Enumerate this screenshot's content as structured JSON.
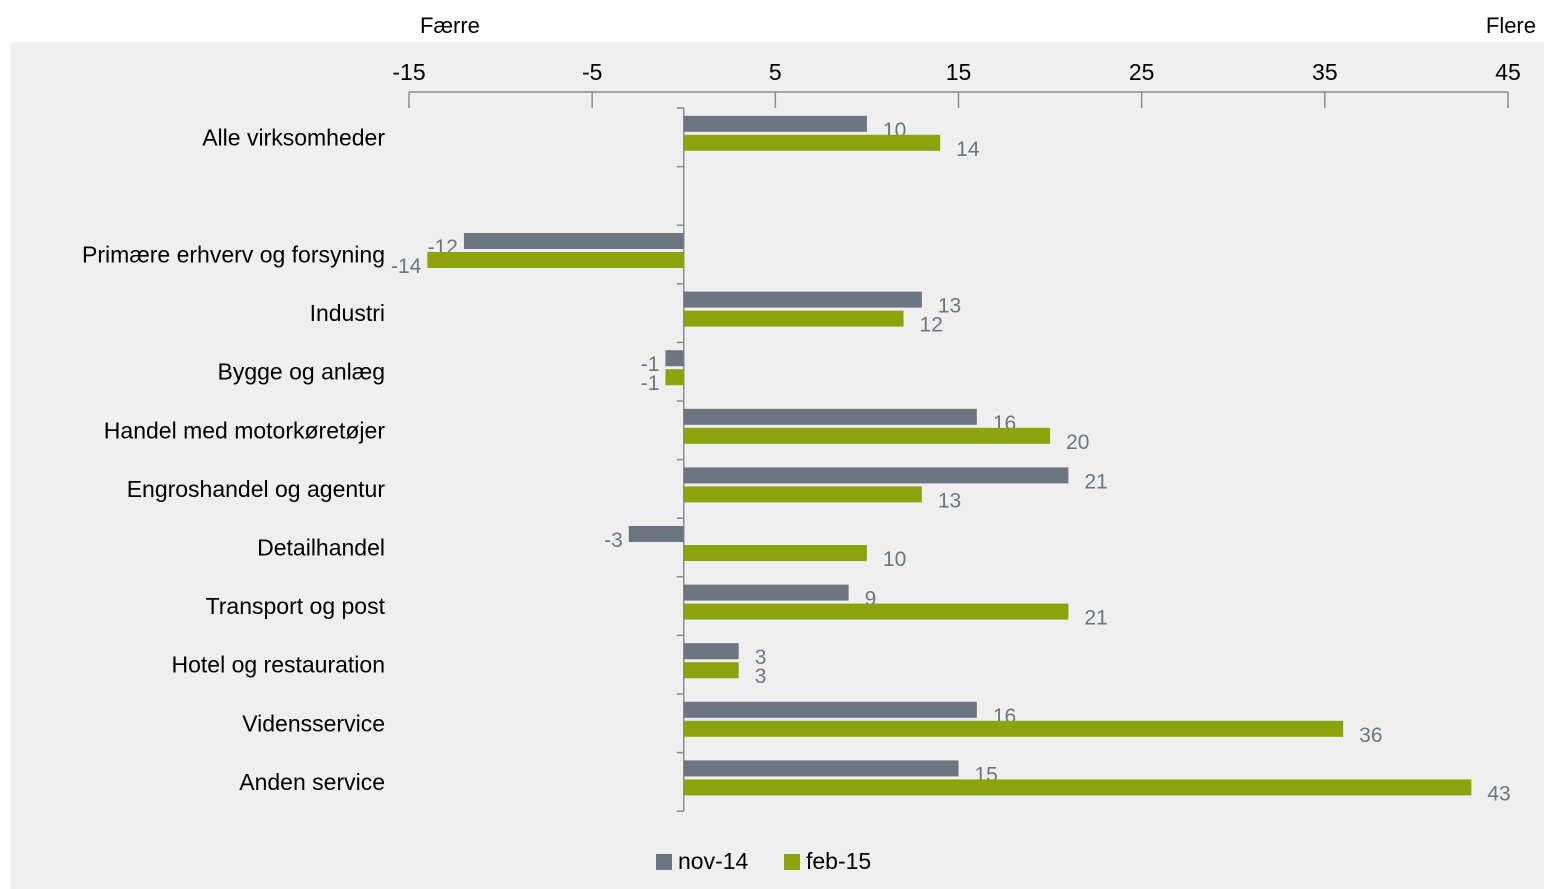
{
  "chart_data": {
    "type": "bar",
    "orientation": "horizontal",
    "side_labels": {
      "left": "Færre",
      "right": "Flere"
    },
    "categories": [
      "Alle virksomheder",
      "",
      "Primære erhverv og forsyning",
      "Industri",
      "Bygge og anlæg",
      "Handel med motorkøretøjer",
      "Engroshandel og agentur",
      "Detailhandel",
      "Transport og post",
      "Hotel og restauration",
      "Vidensservice",
      "Anden service"
    ],
    "series": [
      {
        "name": "nov-14",
        "color": "#6b7680",
        "values": [
          10,
          null,
          -12,
          13,
          -1,
          16,
          21,
          -3,
          9,
          3,
          16,
          15
        ]
      },
      {
        "name": "feb-15",
        "color": "#8ca30e",
        "values": [
          14,
          null,
          -14,
          12,
          -1,
          20,
          13,
          10,
          21,
          3,
          36,
          43
        ]
      }
    ],
    "xlim": [
      -15,
      45
    ],
    "xticks": [
      "-15",
      "-5",
      "5",
      "15",
      "25",
      "35",
      "45"
    ],
    "xtick_values": [
      -15,
      -5,
      5,
      15,
      25,
      35,
      45
    ],
    "axis_position": "top",
    "legend": "bottom-center",
    "grid": false
  }
}
